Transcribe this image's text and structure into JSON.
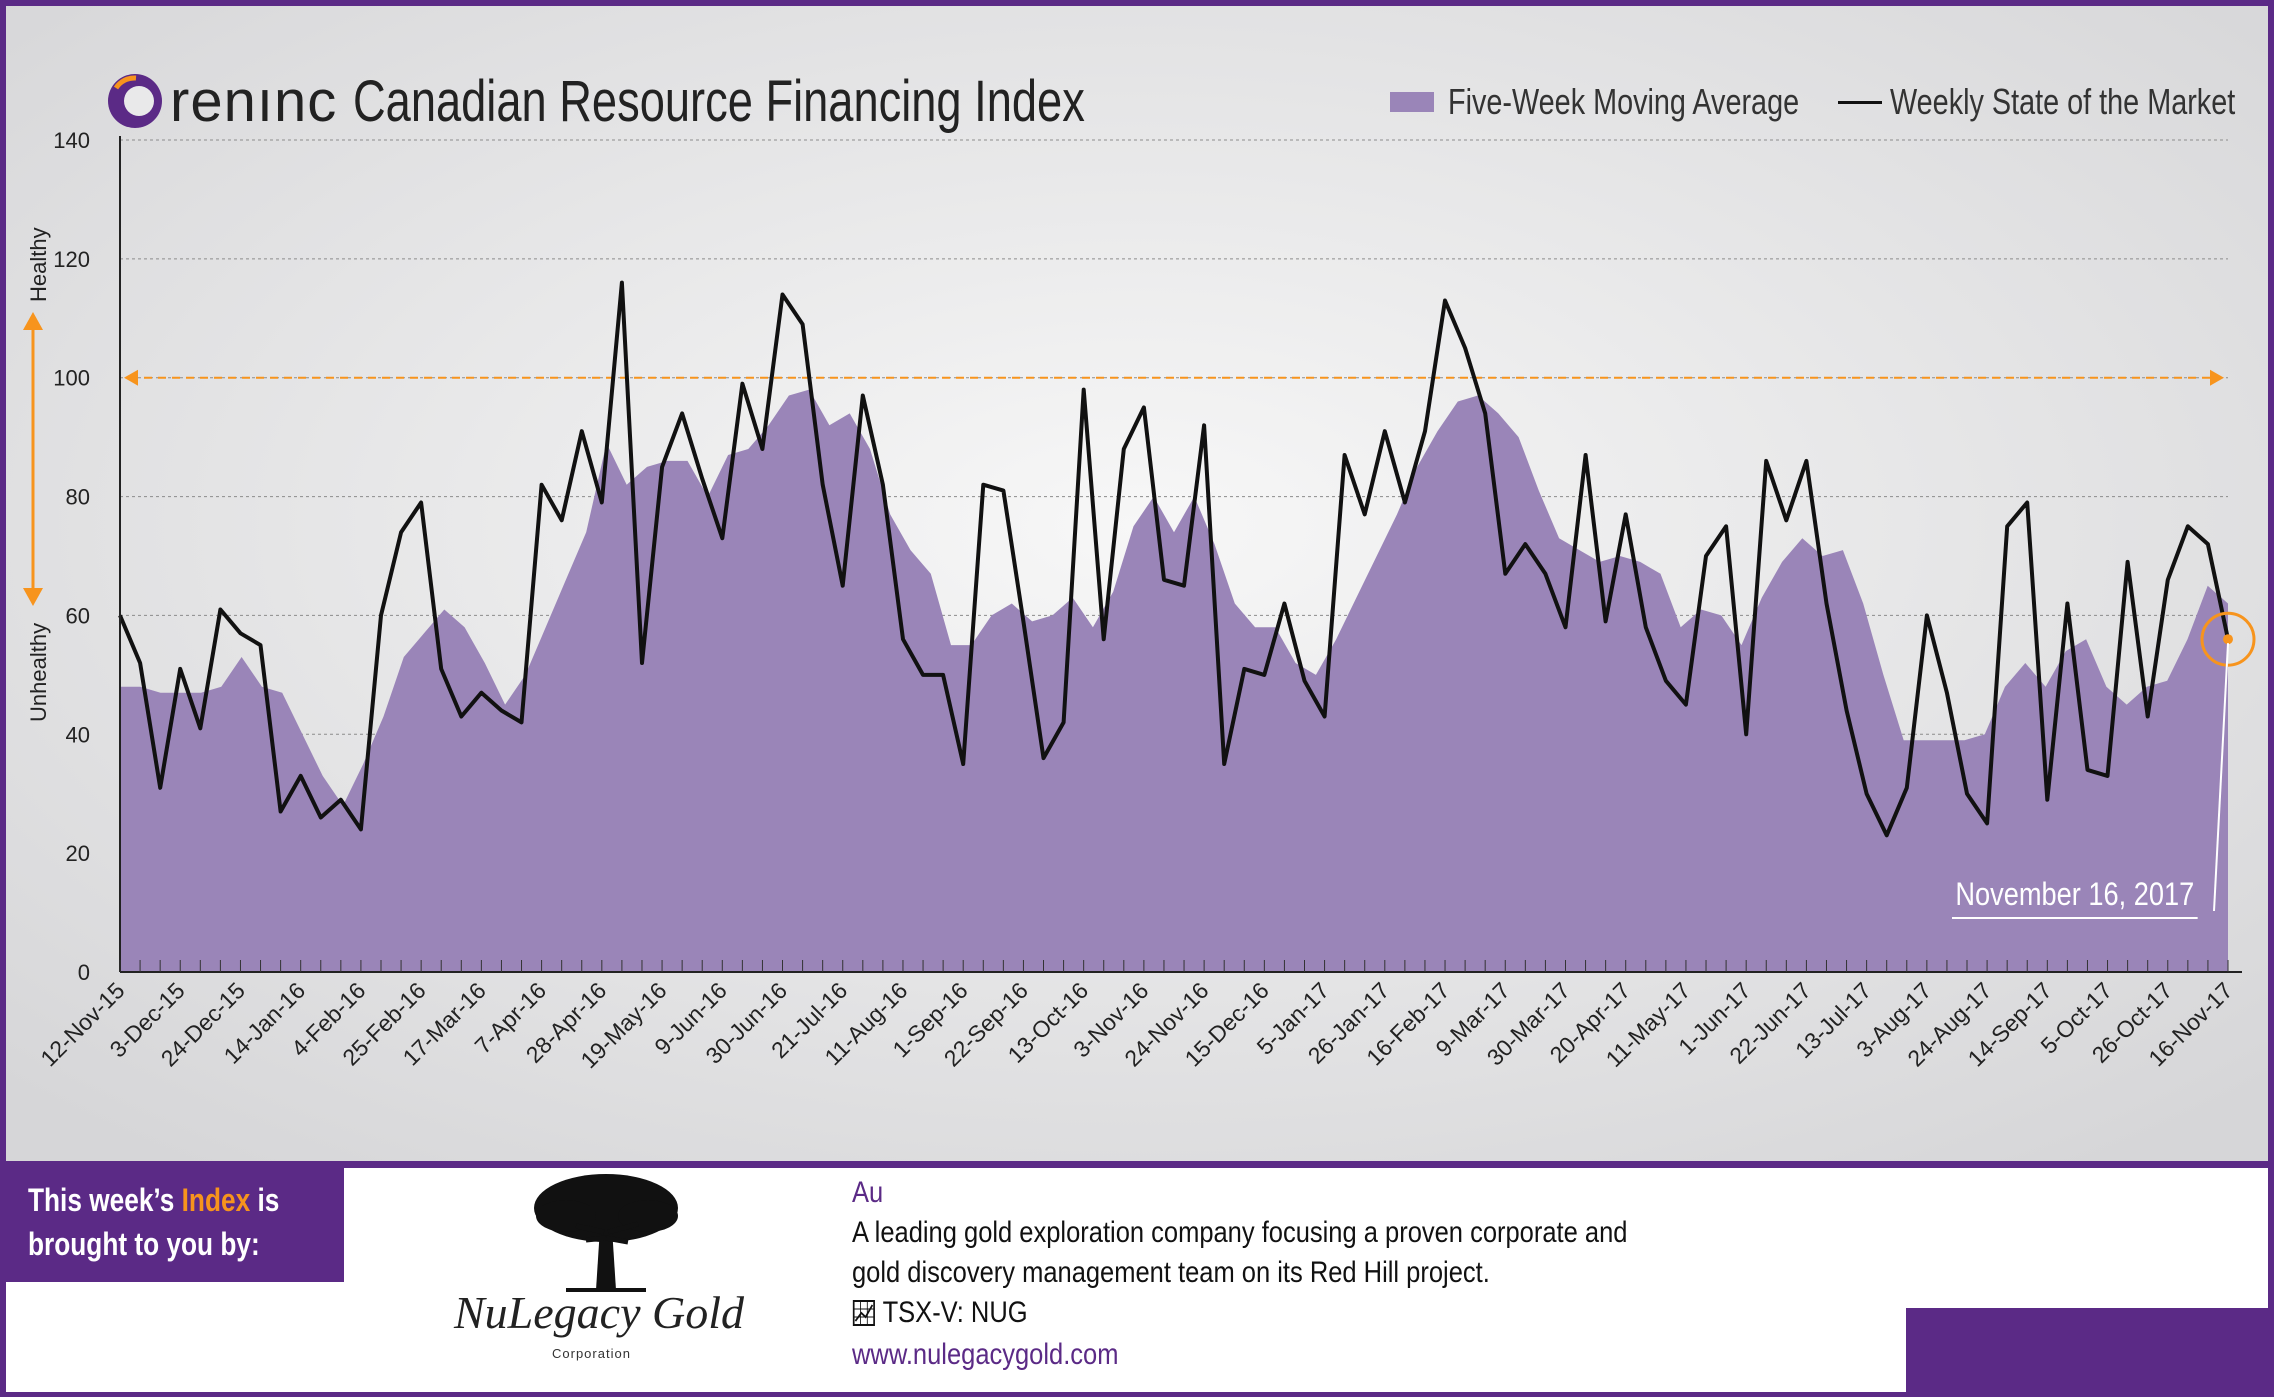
{
  "header": {
    "brand": "renınc",
    "title": "Canadian Resource Financing Index"
  },
  "legend": {
    "area_label": "Five-Week Moving Average",
    "line_label": "Weekly State of the Market"
  },
  "axis": {
    "healthy_label": "Healthy",
    "unhealthy_label": "Unhealthy"
  },
  "callout": {
    "date": "November 16, 2017"
  },
  "sponsor": {
    "tag_line1_a": "This week’s ",
    "tag_line1_b": "Index",
    "tag_line1_c": " is",
    "tag_line2": "brought to you by:",
    "company": "NuLegacy Gold",
    "company_sub": "Corporation",
    "symbol": "Au",
    "desc_line1": "A leading gold exploration company focusing a proven corporate and",
    "desc_line2": "gold discovery management team on its Red Hill project.",
    "ticker": "TSX-V:  NUG",
    "url": "www.nulegacygold.com"
  },
  "colors": {
    "frame": "#5b2a86",
    "area": "#9a85b8",
    "line": "#111111",
    "threshold": "#f7941d",
    "highlight": "#f7941d"
  },
  "chart_data": {
    "type": "area",
    "ylim": [
      0,
      140
    ],
    "yticks": [
      0,
      20,
      40,
      60,
      80,
      100,
      120,
      140
    ],
    "threshold": 100,
    "x_tick_labels": [
      "12-Nov-15",
      "3-Dec-15",
      "24-Dec-15",
      "14-Jan-16",
      "4-Feb-16",
      "25-Feb-16",
      "17-Mar-16",
      "7-Apr-16",
      "28-Apr-16",
      "19-May-16",
      "9-Jun-16",
      "30-Jun-16",
      "21-Jul-16",
      "11-Aug-16",
      "1-Sep-16",
      "22-Sep-16",
      "13-Oct-16",
      "3-Nov-16",
      "24-Nov-16",
      "15-Dec-16",
      "5-Jan-17",
      "26-Jan-17",
      "16-Feb-17",
      "9-Mar-17",
      "30-Mar-17",
      "20-Apr-17",
      "11-May-17",
      "1-Jun-17",
      "22-Jun-17",
      "13-Jul-17",
      "3-Aug-17",
      "24-Aug-17",
      "14-Sep-17",
      "5-Oct-17",
      "26-Oct-17",
      "16-Nov-17"
    ],
    "x_tick_step_weeks": 3,
    "series": [
      {
        "name": "Five-Week Moving Average",
        "kind": "area",
        "values": [
          48,
          48,
          47,
          47,
          47,
          48,
          53,
          48,
          47,
          40,
          33,
          28,
          35,
          43,
          53,
          57,
          61,
          58,
          52,
          45,
          50,
          58,
          66,
          74,
          89,
          82,
          85,
          86,
          86,
          80,
          87,
          88,
          92,
          97,
          98,
          92,
          94,
          88,
          77,
          71,
          67,
          55,
          55,
          60,
          62,
          59,
          60,
          63,
          58,
          64,
          75,
          80,
          74,
          80,
          72,
          62,
          58,
          58,
          52,
          50,
          56,
          63,
          70,
          77,
          85,
          91,
          96,
          97,
          94,
          90,
          81,
          73,
          71,
          69,
          70,
          69,
          67,
          58,
          61,
          60,
          55,
          63,
          69,
          73,
          70,
          71,
          62,
          50,
          39,
          39,
          39,
          39,
          40,
          48,
          52,
          48,
          54,
          56,
          48,
          45,
          48,
          49,
          56,
          65,
          62
        ]
      },
      {
        "name": "Weekly State of the Market",
        "kind": "line",
        "values": [
          60,
          52,
          31,
          51,
          41,
          61,
          57,
          55,
          27,
          33,
          26,
          29,
          24,
          60,
          74,
          79,
          51,
          43,
          47,
          44,
          42,
          82,
          76,
          91,
          79,
          116,
          52,
          85,
          94,
          83,
          73,
          99,
          88,
          114,
          109,
          82,
          65,
          97,
          82,
          56,
          50,
          50,
          35,
          82,
          81,
          59,
          36,
          42,
          98,
          56,
          88,
          95,
          66,
          65,
          92,
          35,
          51,
          50,
          62,
          49,
          43,
          87,
          77,
          91,
          79,
          91,
          113,
          105,
          94,
          67,
          72,
          67,
          58,
          87,
          59,
          77,
          58,
          49,
          45,
          70,
          75,
          40,
          86,
          76,
          86,
          62,
          44,
          30,
          23,
          31,
          60,
          47,
          30,
          25,
          75,
          79,
          29,
          62,
          34,
          33,
          69,
          43,
          66,
          75,
          72,
          56
        ]
      }
    ],
    "highlight_point": {
      "x": "16-Nov-17",
      "y": 56
    }
  }
}
